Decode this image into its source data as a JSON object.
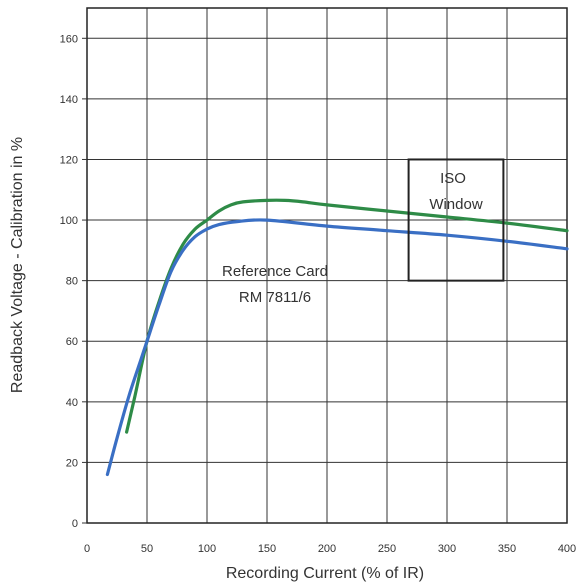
{
  "chart_data": {
    "type": "line",
    "xlabel": "Recording Current (% of IR)",
    "ylabel": "Readback Voltage - Calibration in %",
    "xlim": [
      0,
      400
    ],
    "ylim": [
      0,
      170
    ],
    "xticks": [
      0,
      50,
      100,
      150,
      200,
      250,
      300,
      350,
      400
    ],
    "yticks": [
      0,
      20,
      40,
      60,
      80,
      100,
      120,
      140,
      160
    ],
    "x_tick_labels": [
      "0",
      "50",
      "100",
      "150",
      "200",
      "250",
      "300",
      "350",
      "400"
    ],
    "y_tick_labels": [
      "0",
      "20",
      "40",
      "60",
      "80",
      "100",
      "120",
      "140",
      "160"
    ],
    "grid": true,
    "series": [
      {
        "color": "#2e8b47",
        "points": [
          [
            33,
            30
          ],
          [
            40,
            42
          ],
          [
            50,
            60
          ],
          [
            60,
            73
          ],
          [
            70,
            84
          ],
          [
            80,
            92
          ],
          [
            90,
            97
          ],
          [
            100,
            100
          ],
          [
            110,
            103
          ],
          [
            120,
            105
          ],
          [
            130,
            106
          ],
          [
            150,
            106.5
          ],
          [
            165,
            106.5
          ],
          [
            180,
            106
          ],
          [
            200,
            105
          ],
          [
            250,
            103
          ],
          [
            300,
            101
          ],
          [
            350,
            99
          ],
          [
            400,
            96.5
          ]
        ]
      },
      {
        "color": "#3a6fc4",
        "points": [
          [
            17,
            16
          ],
          [
            25,
            28
          ],
          [
            35,
            42
          ],
          [
            45,
            54
          ],
          [
            50,
            60
          ],
          [
            60,
            72
          ],
          [
            70,
            83
          ],
          [
            80,
            90
          ],
          [
            90,
            94.5
          ],
          [
            100,
            97
          ],
          [
            110,
            98.5
          ],
          [
            125,
            99.5
          ],
          [
            150,
            100
          ],
          [
            200,
            98
          ],
          [
            250,
            96.5
          ],
          [
            300,
            95
          ],
          [
            350,
            93
          ],
          [
            400,
            90.5
          ]
        ]
      }
    ],
    "annotations": {
      "reference_line1": "Reference Card",
      "reference_line2": "RM 7811/6",
      "iso_line1": "ISO",
      "iso_line2": "Window"
    },
    "iso_window": {
      "x_range": [
        268,
        347
      ],
      "y_range": [
        80,
        120
      ]
    }
  }
}
